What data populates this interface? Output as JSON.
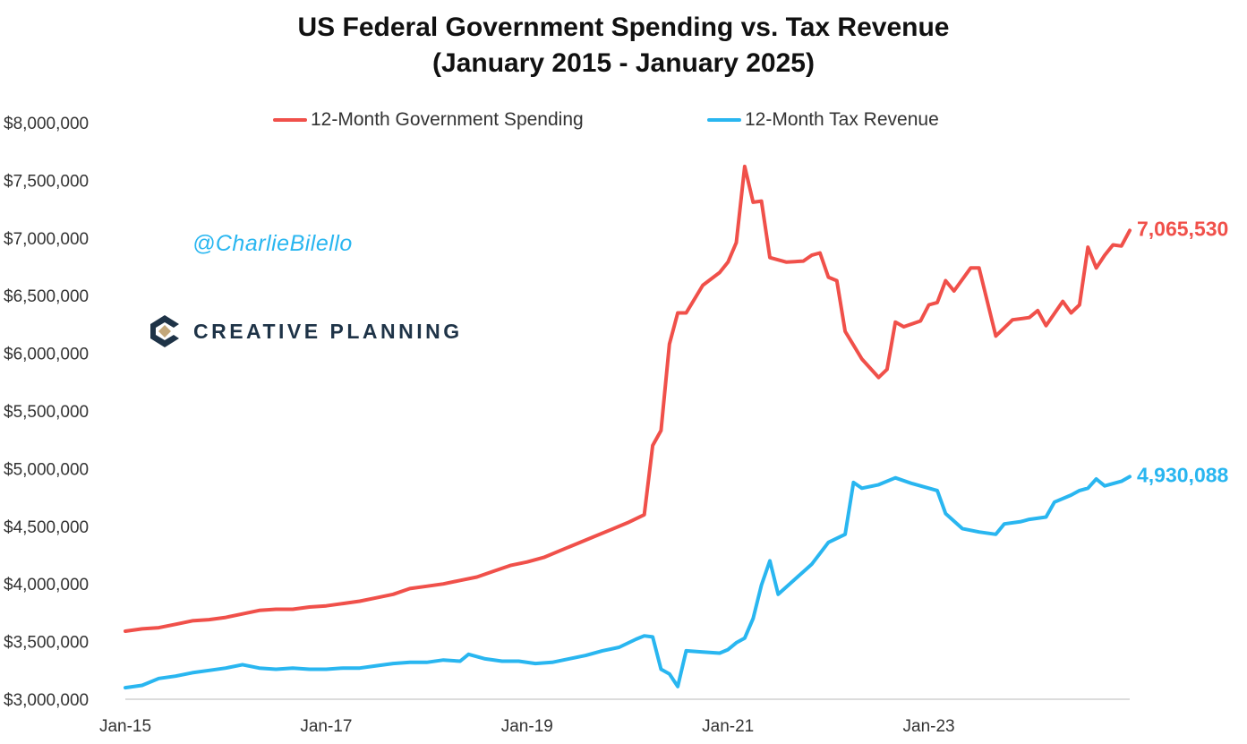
{
  "title_line1": "US Federal Government Spending vs. Tax Revenue",
  "title_line2": "(January 2015 - January 2025)",
  "watermark": {
    "handle": "@CharlieBilello",
    "brand": "CREATIVE PLANNING"
  },
  "chart_data": {
    "type": "line",
    "title": "US Federal Government Spending vs. Tax Revenue (January 2015 - January 2025)",
    "xlabel": "",
    "ylabel": "",
    "x_tick_labels": [
      "Jan-15",
      "Jan-17",
      "Jan-19",
      "Jan-21",
      "Jan-23"
    ],
    "y_tick_labels": [
      "$3,000,000",
      "$3,500,000",
      "$4,000,000",
      "$4,500,000",
      "$5,000,000",
      "$5,500,000",
      "$6,000,000",
      "$6,500,000",
      "$7,000,000",
      "$7,500,000",
      "$8,000,000"
    ],
    "y_ticks": [
      3000000,
      3500000,
      4000000,
      4500000,
      5000000,
      5500000,
      6000000,
      6500000,
      7000000,
      7500000,
      8000000
    ],
    "ylim": [
      3000000,
      8000000
    ],
    "xlim": [
      "2015-01",
      "2025-01"
    ],
    "grid": false,
    "legend_position": "top",
    "series": [
      {
        "name": "12-Month Government Spending",
        "color": "#f0504a",
        "end_label": "7,065,530",
        "points": [
          [
            "2015-01",
            3590000
          ],
          [
            "2015-03",
            3610000
          ],
          [
            "2015-05",
            3620000
          ],
          [
            "2015-07",
            3650000
          ],
          [
            "2015-09",
            3680000
          ],
          [
            "2015-11",
            3690000
          ],
          [
            "2016-01",
            3710000
          ],
          [
            "2016-03",
            3740000
          ],
          [
            "2016-05",
            3770000
          ],
          [
            "2016-07",
            3780000
          ],
          [
            "2016-09",
            3780000
          ],
          [
            "2016-11",
            3800000
          ],
          [
            "2017-01",
            3810000
          ],
          [
            "2017-03",
            3830000
          ],
          [
            "2017-05",
            3850000
          ],
          [
            "2017-07",
            3880000
          ],
          [
            "2017-09",
            3910000
          ],
          [
            "2017-11",
            3960000
          ],
          [
            "2018-01",
            3980000
          ],
          [
            "2018-03",
            4000000
          ],
          [
            "2018-05",
            4030000
          ],
          [
            "2018-07",
            4060000
          ],
          [
            "2018-09",
            4110000
          ],
          [
            "2018-11",
            4160000
          ],
          [
            "2019-01",
            4190000
          ],
          [
            "2019-03",
            4230000
          ],
          [
            "2019-05",
            4290000
          ],
          [
            "2019-07",
            4350000
          ],
          [
            "2019-09",
            4410000
          ],
          [
            "2019-11",
            4470000
          ],
          [
            "2020-01",
            4530000
          ],
          [
            "2020-03",
            4600000
          ],
          [
            "2020-04",
            5200000
          ],
          [
            "2020-05",
            5330000
          ],
          [
            "2020-06",
            6080000
          ],
          [
            "2020-07",
            6350000
          ],
          [
            "2020-08",
            6350000
          ],
          [
            "2020-10",
            6590000
          ],
          [
            "2020-12",
            6700000
          ],
          [
            "2021-01",
            6790000
          ],
          [
            "2021-02",
            6960000
          ],
          [
            "2021-03",
            7620000
          ],
          [
            "2021-04",
            7310000
          ],
          [
            "2021-05",
            7320000
          ],
          [
            "2021-06",
            6830000
          ],
          [
            "2021-08",
            6790000
          ],
          [
            "2021-10",
            6800000
          ],
          [
            "2021-11",
            6850000
          ],
          [
            "2021-12",
            6870000
          ],
          [
            "2022-01",
            6660000
          ],
          [
            "2022-02",
            6630000
          ],
          [
            "2022-03",
            6190000
          ],
          [
            "2022-05",
            5950000
          ],
          [
            "2022-07",
            5790000
          ],
          [
            "2022-08",
            5860000
          ],
          [
            "2022-09",
            6270000
          ],
          [
            "2022-10",
            6230000
          ],
          [
            "2022-12",
            6280000
          ],
          [
            "2023-01",
            6420000
          ],
          [
            "2023-02",
            6440000
          ],
          [
            "2023-03",
            6630000
          ],
          [
            "2023-04",
            6540000
          ],
          [
            "2023-06",
            6740000
          ],
          [
            "2023-07",
            6740000
          ],
          [
            "2023-09",
            6150000
          ],
          [
            "2023-11",
            6290000
          ],
          [
            "2024-01",
            6310000
          ],
          [
            "2024-02",
            6370000
          ],
          [
            "2024-03",
            6240000
          ],
          [
            "2024-05",
            6450000
          ],
          [
            "2024-06",
            6350000
          ],
          [
            "2024-07",
            6420000
          ],
          [
            "2024-08",
            6920000
          ],
          [
            "2024-09",
            6740000
          ],
          [
            "2024-10",
            6850000
          ],
          [
            "2024-11",
            6940000
          ],
          [
            "2024-12",
            6930000
          ],
          [
            "2025-01",
            7065530
          ]
        ]
      },
      {
        "name": "12-Month Tax Revenue",
        "color": "#29b6f0",
        "end_label": "4,930,088",
        "points": [
          [
            "2015-01",
            3100000
          ],
          [
            "2015-03",
            3120000
          ],
          [
            "2015-05",
            3180000
          ],
          [
            "2015-07",
            3200000
          ],
          [
            "2015-09",
            3230000
          ],
          [
            "2015-11",
            3250000
          ],
          [
            "2016-01",
            3270000
          ],
          [
            "2016-03",
            3300000
          ],
          [
            "2016-05",
            3270000
          ],
          [
            "2016-07",
            3260000
          ],
          [
            "2016-09",
            3270000
          ],
          [
            "2016-11",
            3260000
          ],
          [
            "2017-01",
            3260000
          ],
          [
            "2017-03",
            3270000
          ],
          [
            "2017-05",
            3270000
          ],
          [
            "2017-07",
            3290000
          ],
          [
            "2017-09",
            3310000
          ],
          [
            "2017-11",
            3320000
          ],
          [
            "2018-01",
            3320000
          ],
          [
            "2018-03",
            3340000
          ],
          [
            "2018-05",
            3330000
          ],
          [
            "2018-06",
            3390000
          ],
          [
            "2018-08",
            3350000
          ],
          [
            "2018-10",
            3330000
          ],
          [
            "2018-12",
            3330000
          ],
          [
            "2019-02",
            3310000
          ],
          [
            "2019-04",
            3320000
          ],
          [
            "2019-06",
            3350000
          ],
          [
            "2019-08",
            3380000
          ],
          [
            "2019-10",
            3420000
          ],
          [
            "2019-12",
            3450000
          ],
          [
            "2020-02",
            3520000
          ],
          [
            "2020-03",
            3550000
          ],
          [
            "2020-04",
            3540000
          ],
          [
            "2020-05",
            3260000
          ],
          [
            "2020-06",
            3220000
          ],
          [
            "2020-07",
            3110000
          ],
          [
            "2020-08",
            3420000
          ],
          [
            "2020-10",
            3410000
          ],
          [
            "2020-12",
            3400000
          ],
          [
            "2021-01",
            3430000
          ],
          [
            "2021-02",
            3490000
          ],
          [
            "2021-03",
            3530000
          ],
          [
            "2021-04",
            3700000
          ],
          [
            "2021-05",
            3990000
          ],
          [
            "2021-06",
            4200000
          ],
          [
            "2021-07",
            3910000
          ],
          [
            "2021-09",
            4040000
          ],
          [
            "2021-11",
            4170000
          ],
          [
            "2022-01",
            4360000
          ],
          [
            "2022-03",
            4430000
          ],
          [
            "2022-04",
            4880000
          ],
          [
            "2022-05",
            4830000
          ],
          [
            "2022-07",
            4860000
          ],
          [
            "2022-09",
            4920000
          ],
          [
            "2022-11",
            4870000
          ],
          [
            "2023-01",
            4830000
          ],
          [
            "2023-02",
            4810000
          ],
          [
            "2023-03",
            4610000
          ],
          [
            "2023-05",
            4480000
          ],
          [
            "2023-07",
            4450000
          ],
          [
            "2023-09",
            4430000
          ],
          [
            "2023-10",
            4520000
          ],
          [
            "2023-12",
            4540000
          ],
          [
            "2024-01",
            4560000
          ],
          [
            "2024-03",
            4580000
          ],
          [
            "2024-04",
            4710000
          ],
          [
            "2024-06",
            4770000
          ],
          [
            "2024-07",
            4810000
          ],
          [
            "2024-08",
            4830000
          ],
          [
            "2024-09",
            4910000
          ],
          [
            "2024-10",
            4850000
          ],
          [
            "2024-12",
            4890000
          ],
          [
            "2025-01",
            4930088
          ]
        ]
      }
    ]
  }
}
